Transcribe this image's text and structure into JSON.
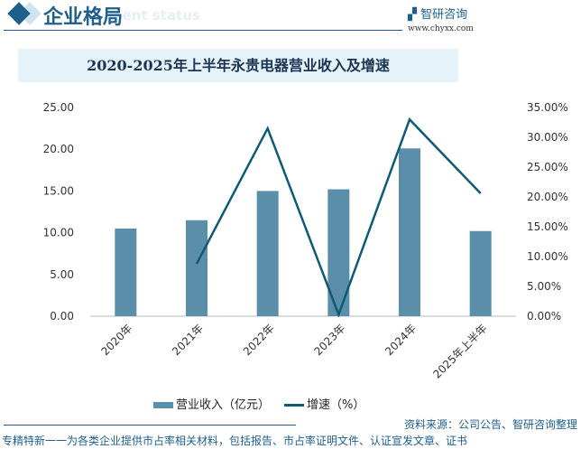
{
  "header": {
    "title": "企业格局",
    "subtitle": "ment status",
    "logo": "智研咨询",
    "url": "www.chyxx.com"
  },
  "chart_data": {
    "type": "bar+line",
    "title": "2020-2025年上半年永贵电器营业收入及增速",
    "categories": [
      "2020年",
      "2021年",
      "2022年",
      "2023年",
      "2024年",
      "2025年上半年"
    ],
    "series": [
      {
        "name": "营业收入（亿元）",
        "type": "bar",
        "axis": "left",
        "color": "#5b8ea8",
        "values": [
          10.5,
          11.5,
          15.0,
          15.2,
          20.1,
          10.2
        ]
      },
      {
        "name": "增速（%）",
        "type": "line",
        "axis": "right",
        "color": "#0e5a72",
        "values": [
          null,
          8.8,
          31.5,
          0.3,
          33.0,
          20.6
        ]
      }
    ],
    "left_axis": {
      "ylim": [
        0,
        25
      ],
      "ticks": [
        "0.00",
        "5.00",
        "10.00",
        "15.00",
        "20.00",
        "25.00"
      ]
    },
    "right_axis": {
      "ylim": [
        0,
        35
      ],
      "ticks": [
        "0.00%",
        "5.00%",
        "10.00%",
        "15.00%",
        "20.00%",
        "25.00%",
        "30.00%",
        "35.00%"
      ]
    },
    "legend": "bottom",
    "grid": false
  },
  "legend": {
    "bar": "营业收入（亿元）",
    "line": "增速（%）"
  },
  "source": "资料来源：公司公告、智研咨询整理",
  "footer": "专精特新一一为各类企业提供市占率相关材料，包括报告、市占率证明文件、认证宣发文章、证书"
}
